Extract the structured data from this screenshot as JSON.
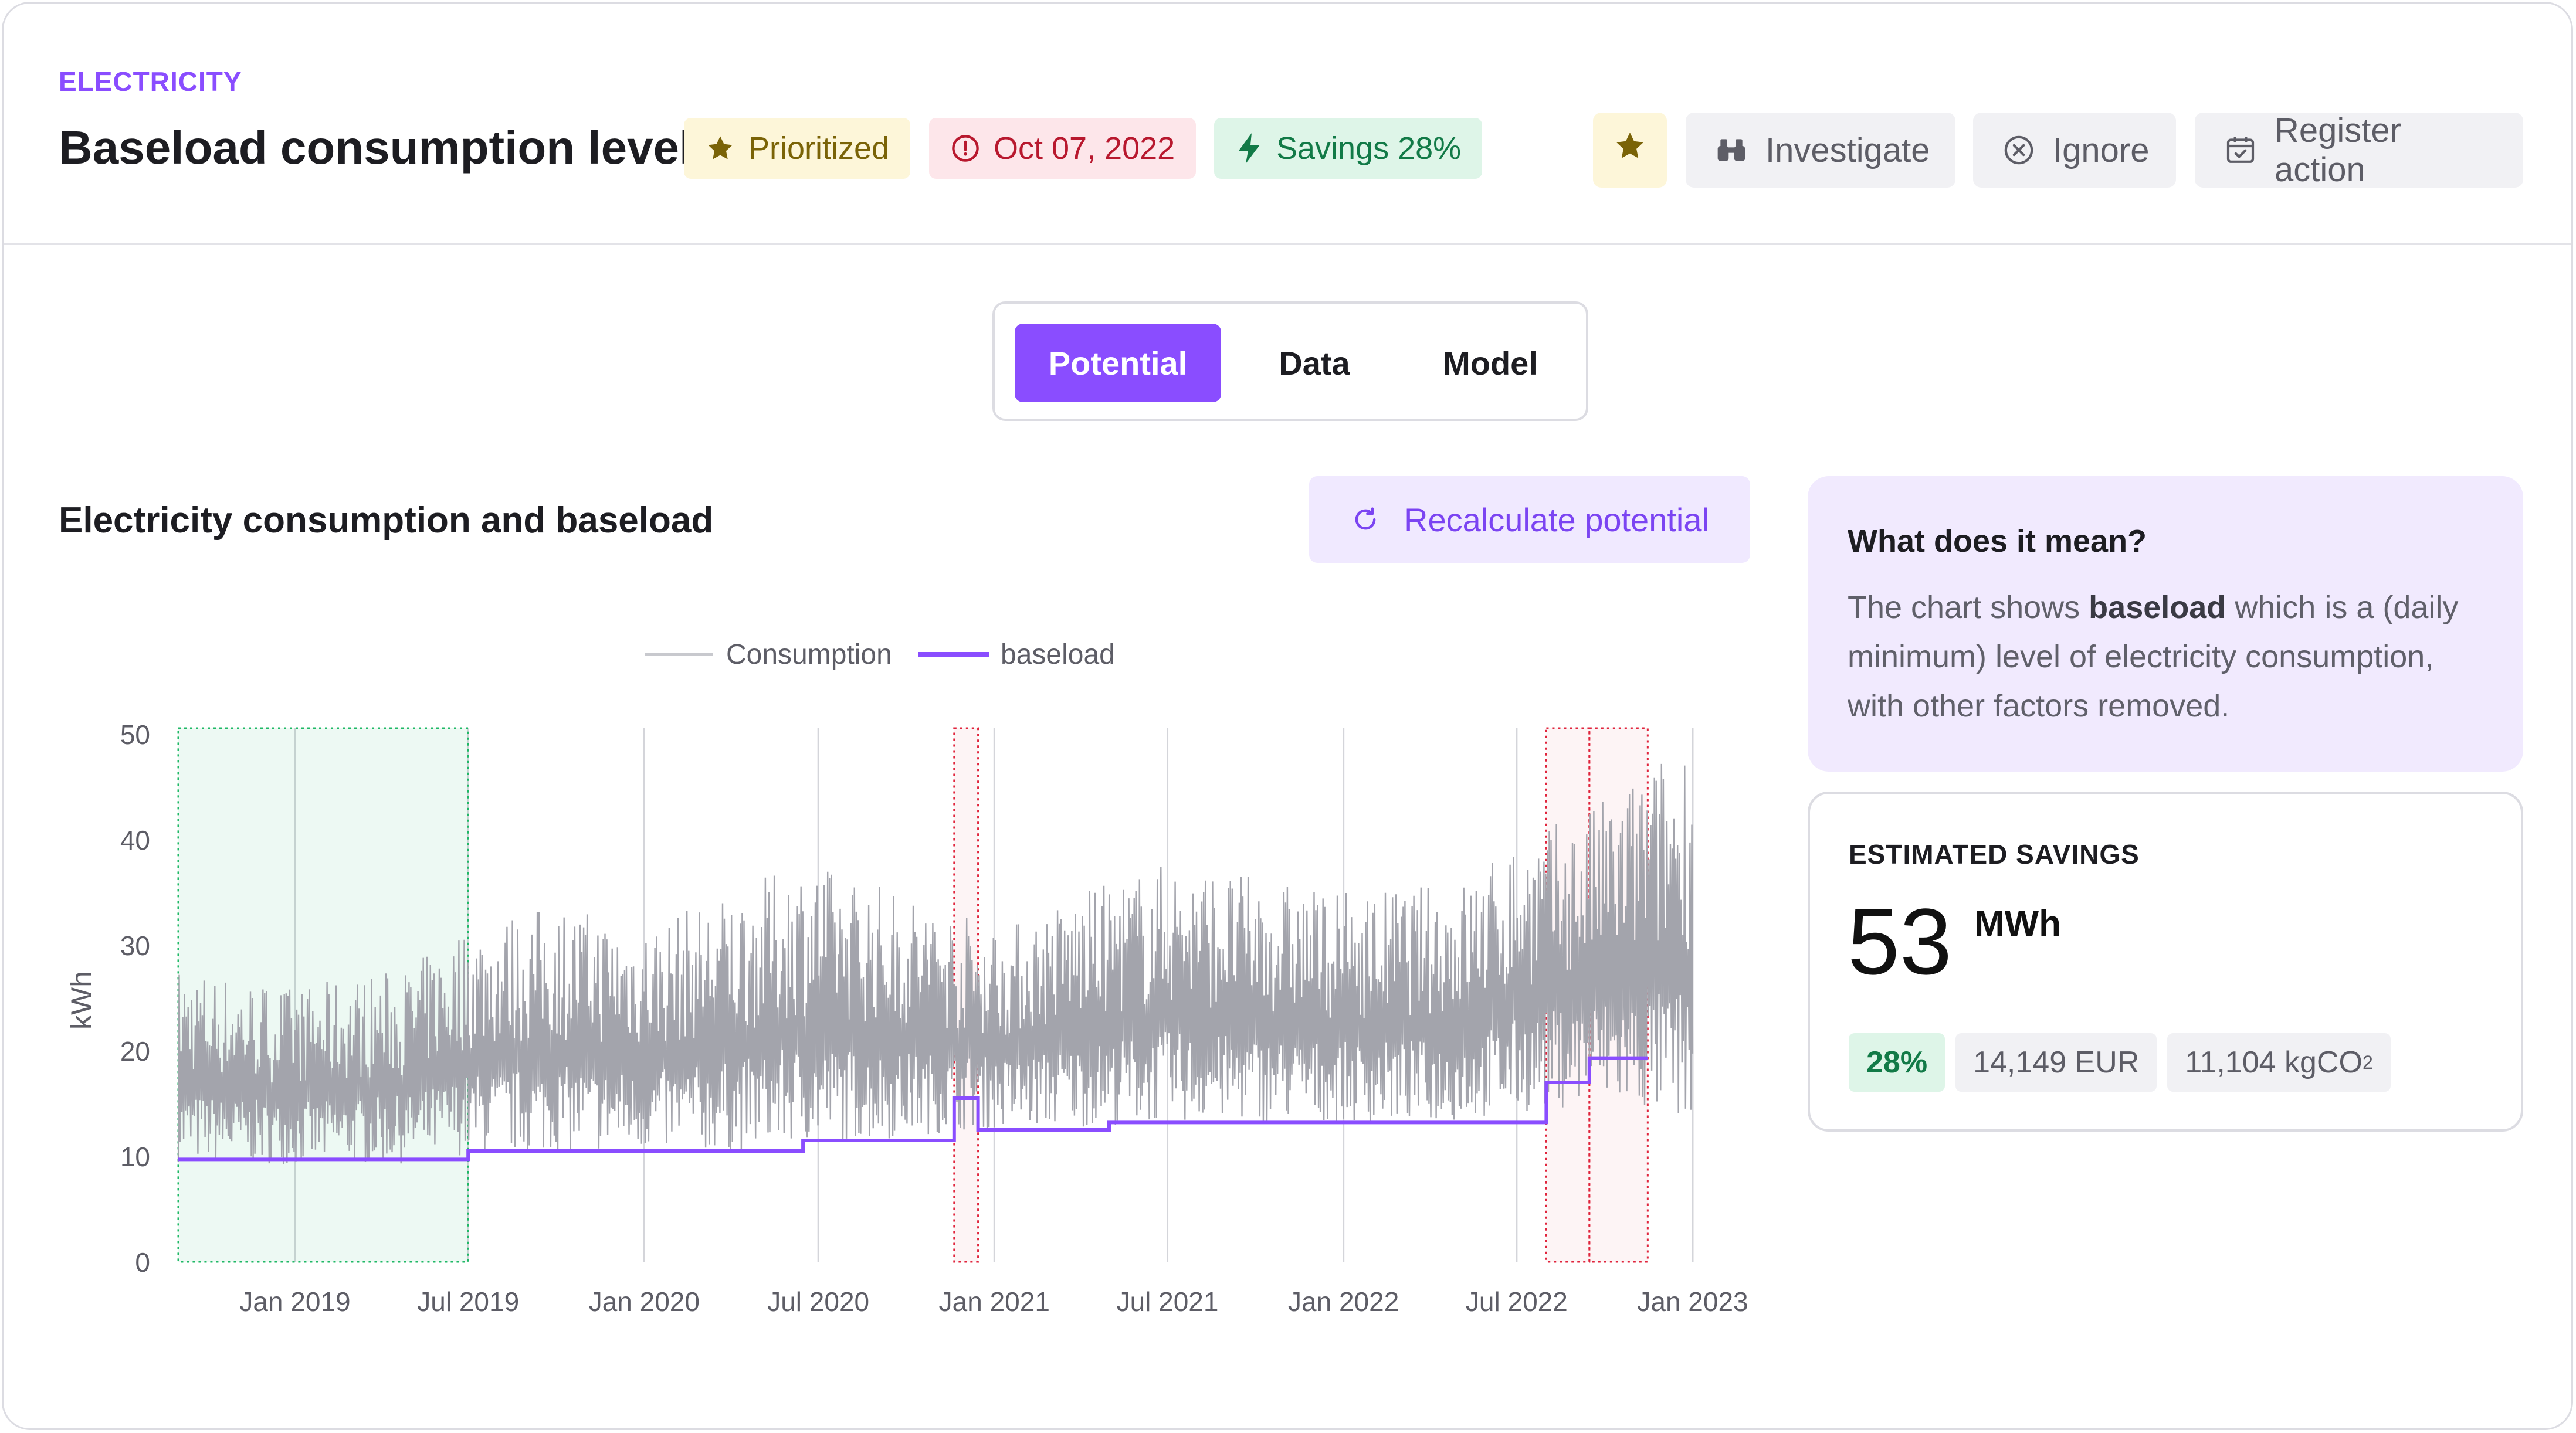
{
  "header": {
    "eyebrow": "ELECTRICITY",
    "title": "Baseload consumption level",
    "badges": {
      "prioritized": "Prioritized",
      "date": "Oct 07, 2022",
      "savings": "Savings 28%"
    },
    "actions": {
      "investigate": "Investigate",
      "ignore": "Ignore",
      "register": "Register action"
    }
  },
  "tabs": [
    {
      "label": "Potential",
      "active": true
    },
    {
      "label": "Data",
      "active": false
    },
    {
      "label": "Model",
      "active": false
    }
  ],
  "section": {
    "title": "Electricity consumption and baseload",
    "recalc_label": "Recalculate potential"
  },
  "chart_data": {
    "type": "line",
    "ylabel": "kWh",
    "ylim": [
      0,
      50
    ],
    "yticks": [
      "0",
      "10",
      "20",
      "30",
      "40",
      "50"
    ],
    "xticks": [
      "Jan 2019",
      "Jul 2019",
      "Jan 2020",
      "Jul 2020",
      "Jan 2021",
      "Jul 2021",
      "Jan 2022",
      "Jul 2022",
      "Jan 2023"
    ],
    "x_range": [
      "2018-09-01",
      "2023-01-01"
    ],
    "legend": [
      "Consumption",
      "baseload"
    ],
    "colors": {
      "consumption": "#a3a4ac",
      "baseload": "#8a4dff",
      "reference_region": "#1fb866",
      "highlight_region": "#e0243c"
    },
    "consumption_envelope": [
      {
        "date": "2018-09-01",
        "min": 9.5,
        "max": 28
      },
      {
        "date": "2019-01-01",
        "min": 9.2,
        "max": 26
      },
      {
        "date": "2019-05-01",
        "min": 9.3,
        "max": 28
      },
      {
        "date": "2019-07-01",
        "min": 10.2,
        "max": 32
      },
      {
        "date": "2019-10-01",
        "min": 10.3,
        "max": 34
      },
      {
        "date": "2020-01-01",
        "min": 10.5,
        "max": 32
      },
      {
        "date": "2020-04-01",
        "min": 10.4,
        "max": 35
      },
      {
        "date": "2020-06-15",
        "min": 11.2,
        "max": 38
      },
      {
        "date": "2020-09-01",
        "min": 11.5,
        "max": 36
      },
      {
        "date": "2020-12-01",
        "min": 12.5,
        "max": 33
      },
      {
        "date": "2021-01-15",
        "min": 12.5,
        "max": 32
      },
      {
        "date": "2021-04-01",
        "min": 12.8,
        "max": 35
      },
      {
        "date": "2021-07-01",
        "min": 13.2,
        "max": 38
      },
      {
        "date": "2022-01-01",
        "min": 13.2,
        "max": 35
      },
      {
        "date": "2022-05-01",
        "min": 13.2,
        "max": 36
      },
      {
        "date": "2022-07-01",
        "min": 14,
        "max": 40
      },
      {
        "date": "2022-09-15",
        "min": 15,
        "max": 43
      },
      {
        "date": "2022-12-31",
        "min": 13,
        "max": 50
      }
    ],
    "baseload_steps": [
      {
        "from": "2018-09-01",
        "to": "2019-07-01",
        "value": 9.7
      },
      {
        "from": "2019-07-01",
        "to": "2020-06-15",
        "value": 10.5
      },
      {
        "from": "2020-06-15",
        "to": "2020-11-20",
        "value": 11.5
      },
      {
        "from": "2020-11-20",
        "to": "2020-12-15",
        "value": 15.5
      },
      {
        "from": "2020-12-15",
        "to": "2021-05-01",
        "value": 12.5
      },
      {
        "from": "2021-05-01",
        "to": "2022-08-01",
        "value": 13.2
      },
      {
        "from": "2022-08-01",
        "to": "2022-09-15",
        "value": 17
      },
      {
        "from": "2022-09-15",
        "to": "2022-11-15",
        "value": 19.3
      }
    ],
    "reference_period": {
      "from": "2018-09-01",
      "to": "2019-07-01"
    },
    "highlight_periods": [
      {
        "from": "2020-11-20",
        "to": "2020-12-15"
      },
      {
        "from": "2022-08-01",
        "to": "2022-09-15"
      },
      {
        "from": "2022-09-15",
        "to": "2022-11-15"
      }
    ]
  },
  "info": {
    "title": "What does it mean?",
    "body_prefix": "The chart shows ",
    "body_bold": "baseload",
    "body_suffix": " which is a (daily minimum) level of electricity consumption, with other factors removed."
  },
  "savings": {
    "label": "ESTIMATED SAVINGS",
    "value": "53",
    "unit": "MWh",
    "percent": "28%",
    "eur": "14,149 EUR",
    "co2": "11,104 kgCO",
    "co2_sup": "2"
  }
}
